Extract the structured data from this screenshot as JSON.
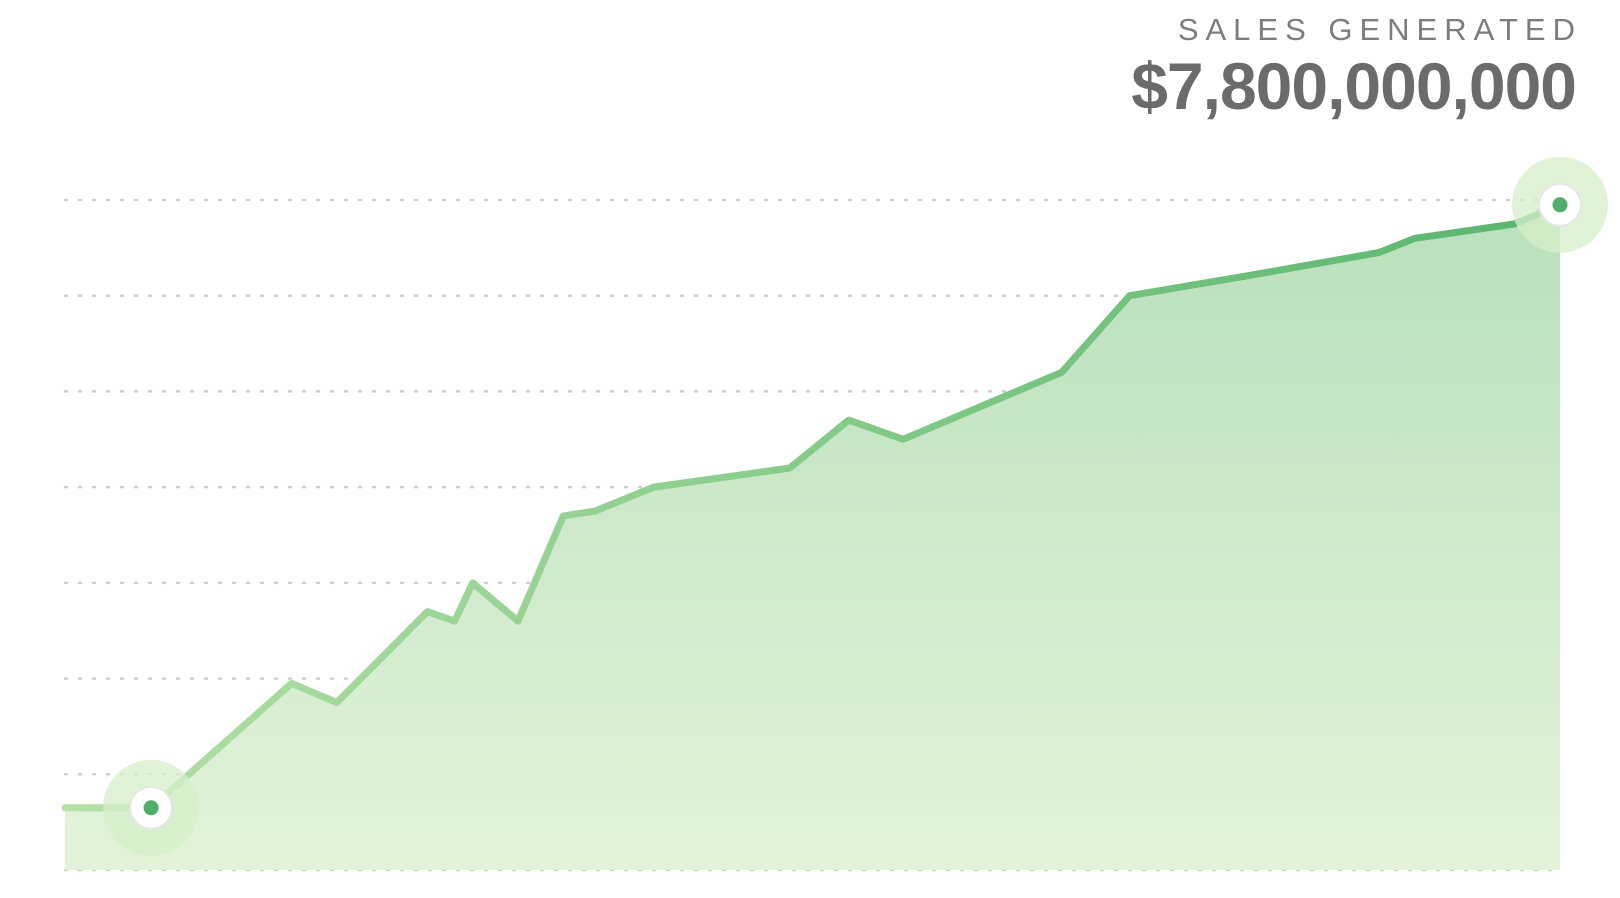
{
  "header": {
    "kicker": "SALES GENERATED",
    "total": "$7,800,000,000"
  },
  "colors": {
    "line_start": "#b4e0a6",
    "line_end": "#58b66e",
    "fill_top": "#b9e0bd",
    "fill_bottom": "#e3f3d9",
    "grid": "#cfcfcf",
    "marker_dot": "#4fae6a",
    "marker_halo": "#d6efc9"
  },
  "chart_data": {
    "type": "area",
    "title": "SALES GENERATED",
    "xlabel": "",
    "ylabel": "",
    "ylim": [
      0,
      7
    ],
    "grid": "horizontal dotted",
    "points": [
      [
        0,
        0.65
      ],
      [
        1.9,
        0.65
      ],
      [
        5.0,
        1.95
      ],
      [
        6.0,
        1.75
      ],
      [
        8.0,
        2.7
      ],
      [
        8.6,
        2.6
      ],
      [
        9.0,
        3.0
      ],
      [
        10.0,
        2.6
      ],
      [
        11.0,
        3.7
      ],
      [
        11.7,
        3.75
      ],
      [
        13.0,
        4.0
      ],
      [
        16.0,
        4.2
      ],
      [
        17.3,
        4.7
      ],
      [
        18.5,
        4.5
      ],
      [
        22.0,
        5.2
      ],
      [
        23.5,
        6.0
      ],
      [
        26.0,
        6.2
      ],
      [
        29.0,
        6.45
      ],
      [
        29.8,
        6.6
      ],
      [
        32.0,
        6.75
      ],
      [
        33.0,
        6.95
      ]
    ],
    "highlighted": [
      1,
      20
    ]
  }
}
